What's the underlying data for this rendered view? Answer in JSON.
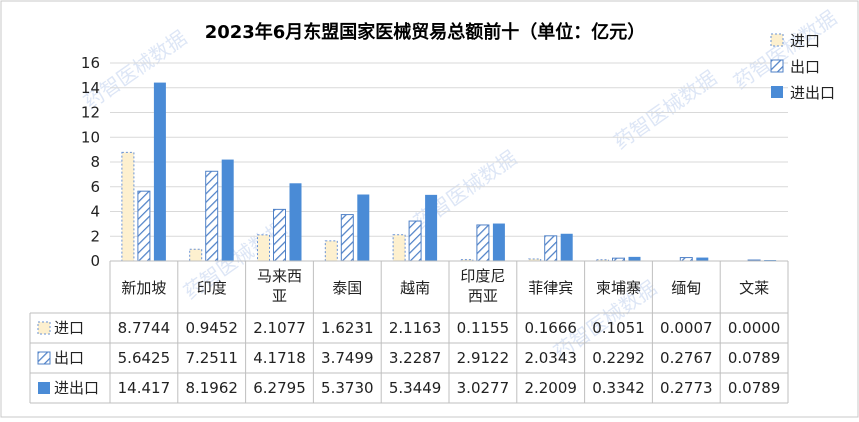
{
  "chart_data": {
    "type": "bar",
    "title": "2023年6月东盟国家医械贸易总额前十（单位：亿元）",
    "categories": [
      [
        "新加坡"
      ],
      [
        "印度"
      ],
      [
        "马来西",
        "亚"
      ],
      [
        "泰国"
      ],
      [
        "越南"
      ],
      [
        "印度尼",
        "西亚"
      ],
      [
        "菲律宾"
      ],
      [
        "柬埔寨"
      ],
      [
        "缅甸"
      ],
      [
        "文莱"
      ]
    ],
    "ylim": [
      0,
      16
    ],
    "yticks": [
      "0",
      "2",
      "4",
      "6",
      "8",
      "10",
      "12",
      "14",
      "16"
    ],
    "legend_position": "top-right",
    "series": [
      {
        "name": "进口",
        "values": [
          8.7744,
          0.9452,
          2.1077,
          1.6231,
          2.1163,
          0.1155,
          0.1666,
          0.1051,
          0.0007,
          0.0
        ],
        "labels": [
          "8.7744",
          "0.9452",
          "2.1077",
          "1.6231",
          "2.1163",
          "0.1155",
          "0.1666",
          "0.1051",
          "0.0007",
          "0.0000"
        ],
        "style": "dashed-cream"
      },
      {
        "name": "出口",
        "values": [
          5.6425,
          7.2511,
          4.1718,
          3.7499,
          3.2287,
          2.9122,
          2.0343,
          0.2292,
          0.2767,
          0.0789
        ],
        "labels": [
          "5.6425",
          "7.2511",
          "4.1718",
          "3.7499",
          "3.2287",
          "2.9122",
          "2.0343",
          "0.2292",
          "0.2767",
          "0.0789"
        ],
        "style": "hatched-blue"
      },
      {
        "name": "进出口",
        "values": [
          14.417,
          8.1962,
          6.2795,
          5.373,
          5.3449,
          3.0277,
          2.2009,
          0.3342,
          0.2773,
          0.0789
        ],
        "labels": [
          "14.417",
          "8.1962",
          "6.2795",
          "5.3730",
          "5.3449",
          "3.0277",
          "2.2009",
          "0.3342",
          "0.2773",
          "0.0789"
        ],
        "style": "solid-blue"
      }
    ]
  },
  "watermark": "药智医械数据",
  "colors": {
    "import_fill": "#fdf0cf",
    "import_stroke": "#6a93d6",
    "export_stroke": "#4f81c7",
    "total_fill": "#4a8bd6",
    "grid": "#d9d9d9",
    "table_line": "#bfbfbf"
  }
}
